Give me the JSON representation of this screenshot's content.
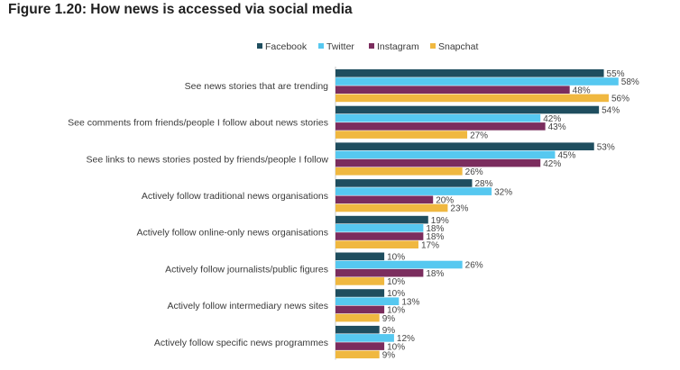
{
  "figure_title": "Figure 1.20: How news is accessed via social media",
  "chart_data": {
    "type": "bar",
    "orientation": "horizontal",
    "legend_position": "top",
    "categories": [
      "See news stories that are trending",
      "See comments from friends/people I follow about news stories",
      "See links to news stories posted by friends/people I follow",
      "Actively follow traditional news organisations",
      "Actively follow online-only news organisations",
      "Actively follow journalists/public figures",
      "Actively follow intermediary news sites",
      "Actively follow specific news programmes"
    ],
    "series": [
      {
        "name": "Facebook",
        "color": "#1f4e5f",
        "values": [
          55,
          54,
          53,
          28,
          19,
          10,
          10,
          9
        ]
      },
      {
        "name": "Twitter",
        "color": "#56c8f0",
        "values": [
          58,
          42,
          45,
          32,
          18,
          26,
          13,
          12
        ]
      },
      {
        "name": "Instagram",
        "color": "#7b2d5e",
        "values": [
          48,
          43,
          42,
          20,
          18,
          18,
          10,
          10
        ]
      },
      {
        "name": "Snapchat",
        "color": "#f0b840",
        "values": [
          56,
          27,
          26,
          23,
          17,
          10,
          9,
          9
        ]
      }
    ],
    "value_suffix": "%",
    "xlim": [
      0,
      60
    ],
    "grid": false
  }
}
